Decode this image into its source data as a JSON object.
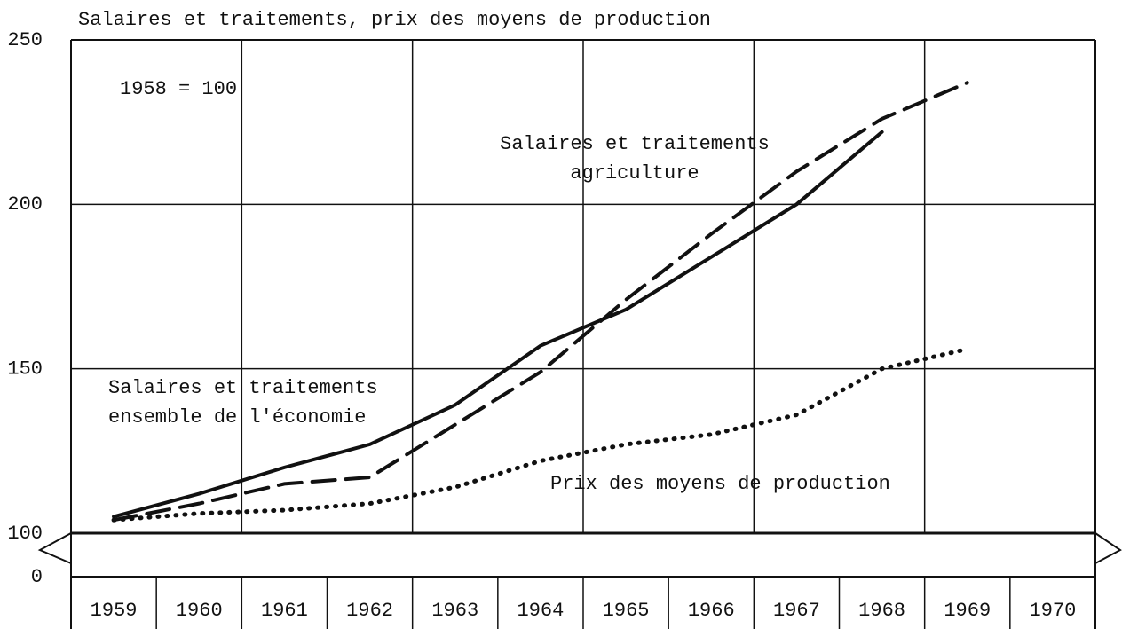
{
  "chart_data": {
    "type": "line",
    "title": "Salaires et traitements, prix des moyens de production",
    "annotations": [
      "1958 = 100",
      "Salaires et traitements",
      "agriculture",
      "Salaires et traitements",
      "ensemble de l'économie",
      "Prix des moyens de production"
    ],
    "categories": [
      "1959",
      "1960",
      "1961",
      "1962",
      "1963",
      "1964",
      "1965",
      "1966",
      "1967",
      "1968",
      "1969",
      "1970"
    ],
    "series": [
      {
        "name": "Salaires et traitements ensemble de l'économie",
        "color": "#111111",
        "style": "solid",
        "values": [
          105,
          112,
          120,
          127,
          139,
          157,
          168,
          184,
          200,
          222,
          null,
          null
        ]
      },
      {
        "name": "Salaires et traitements agriculture",
        "color": "#111111",
        "style": "dashed",
        "values": [
          104,
          109,
          115,
          117,
          133,
          149,
          171,
          191,
          210,
          226,
          237,
          null
        ]
      },
      {
        "name": "Prix des moyens de production",
        "color": "#111111",
        "style": "dotted",
        "values": [
          104,
          106,
          107,
          109,
          114,
          122,
          127,
          130,
          136,
          150,
          156,
          null
        ]
      }
    ],
    "ylim": [
      100,
      250
    ],
    "yticks": [
      0,
      100,
      150,
      200,
      250
    ],
    "axis_break": true,
    "grid": true
  }
}
